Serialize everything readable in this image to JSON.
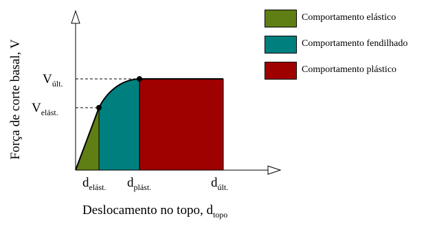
{
  "diagram": {
    "y_axis_label": "Força de corte basal, V",
    "x_axis_label": {
      "main": "Deslocamento no topo, d",
      "sub": "topo"
    },
    "y_levels": [
      {
        "main": "V",
        "sub": "últ."
      },
      {
        "main": "V",
        "sub": "elást."
      }
    ],
    "x_levels": [
      {
        "main": "d",
        "sub": "elást."
      },
      {
        "main": "d",
        "sub": "plást."
      },
      {
        "main": "d",
        "sub": "últ."
      }
    ]
  },
  "legend": [
    {
      "label": "Comportamento elástico",
      "color": "#5f7f14"
    },
    {
      "label": "Comportamento fendilhado",
      "color": "#007f7f"
    },
    {
      "label": "Comportamento plástico",
      "color": "#9f0000"
    }
  ]
}
